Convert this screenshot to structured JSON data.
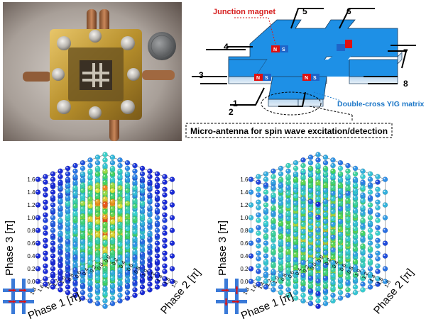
{
  "figure": {
    "photo": {
      "alt": "Photograph of packaged device with coin for scale"
    },
    "schematic": {
      "junction_magnet_label": "Junction magnet",
      "matrix_label": "Double-cross YIG matrix",
      "antenna_label": "Micro-antenna for spin wave excitation/detection",
      "port_labels": [
        "1",
        "2",
        "3",
        "4",
        "5",
        "6",
        "7",
        "8"
      ],
      "magnet_poles": [
        "N",
        "S"
      ],
      "colors": {
        "yig": "#1e90e6",
        "magnet_red": "#e01010",
        "magnet_blue": "#1f64c8",
        "callout": "#d61e1e",
        "matrix_label": "#1e78c8"
      }
    },
    "plots": [
      {
        "id": "left",
        "xlabel": "Phase 1 [π]",
        "ylabel": "Phase 2 [π]",
        "zlabel": "Phase 3 [π]",
        "z_ticks": [
          "0.0",
          "0.2",
          "0.4",
          "0.6",
          "0.8",
          "1.0",
          "1.2",
          "1.4",
          "1.6"
        ],
        "x_ticks": [
          "0.0",
          "0.2",
          "0.4",
          "0.6",
          "0.8",
          "1.0",
          "1.2",
          "1.4",
          "1.6",
          "1.8"
        ],
        "y_ticks": [
          "0.0",
          "0.2",
          "0.4",
          "0.6",
          "0.8",
          "1.0",
          "1.2",
          "1.4",
          "1.6",
          "1.8"
        ],
        "magnet_config": "all-horizontal"
      },
      {
        "id": "right",
        "xlabel": "Phase 1 [π]",
        "ylabel": "Phase 2 [π]",
        "zlabel": "Phase 3 [π]",
        "z_ticks": [
          "0.0",
          "0.2",
          "0.4",
          "0.6",
          "0.8",
          "1.0",
          "1.2",
          "1.4",
          "1.6"
        ],
        "x_ticks": [
          "0.0",
          "0.2",
          "0.4",
          "0.6",
          "0.8",
          "1.0",
          "1.2",
          "1.4",
          "1.6",
          "1.8"
        ],
        "y_ticks": [
          "0.0",
          "0.2",
          "0.4",
          "0.6",
          "0.8",
          "1.0",
          "1.2",
          "1.4",
          "1.6",
          "1.8"
        ],
        "magnet_config": "mixed"
      }
    ],
    "colormap": [
      "#1a2bd6",
      "#2f8fe8",
      "#39d0d0",
      "#46d45a",
      "#d8e03a",
      "#f08a1e",
      "#e01a1a"
    ]
  }
}
